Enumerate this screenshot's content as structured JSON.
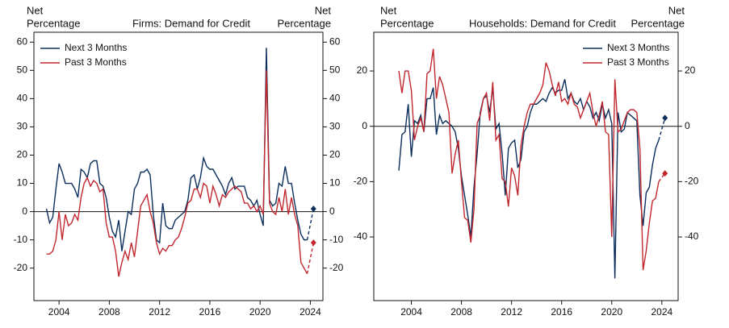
{
  "chart_data": [
    {
      "type": "line",
      "title": "Firms: Demand for Credit",
      "ylabel": [
        "Net",
        "Percentage"
      ],
      "y2label": [
        "Net",
        "Percentage"
      ],
      "legend": "upper left",
      "x": [
        2003,
        2003.25,
        2003.5,
        2003.75,
        2004,
        2004.25,
        2004.5,
        2004.75,
        2005,
        2005.25,
        2005.5,
        2005.75,
        2006,
        2006.25,
        2006.5,
        2006.75,
        2007,
        2007.25,
        2007.5,
        2007.75,
        2008,
        2008.25,
        2008.5,
        2008.75,
        2009,
        2009.25,
        2009.5,
        2009.75,
        2010,
        2010.25,
        2010.5,
        2010.75,
        2011,
        2011.25,
        2011.5,
        2011.75,
        2012,
        2012.25,
        2012.5,
        2012.75,
        2013,
        2013.25,
        2013.5,
        2013.75,
        2014,
        2014.25,
        2014.5,
        2014.75,
        2015,
        2015.25,
        2015.5,
        2015.75,
        2016,
        2016.25,
        2016.5,
        2016.75,
        2017,
        2017.25,
        2017.5,
        2017.75,
        2018,
        2018.25,
        2018.5,
        2018.75,
        2019,
        2019.25,
        2019.5,
        2019.75,
        2020,
        2020.25,
        2020.5,
        2020.75,
        2021,
        2021.25,
        2021.5,
        2021.75,
        2022,
        2022.25,
        2022.5,
        2022.75,
        2023,
        2023.25,
        2023.5,
        2023.75
      ],
      "series": [
        {
          "name": "Next 3 Months",
          "color": "#0b2e5c",
          "values": [
            1,
            -4,
            -2,
            8,
            17,
            14,
            10,
            10,
            10,
            8,
            5,
            15,
            14,
            12,
            17,
            18,
            18,
            10,
            9,
            5,
            -2,
            -7,
            -9,
            -3,
            -14,
            -7,
            0,
            -1,
            8,
            10,
            14,
            14,
            15,
            13,
            -1,
            -10,
            -11,
            3,
            -5,
            -6,
            -6,
            -3,
            -2,
            -1,
            0,
            4,
            12,
            13,
            8,
            12,
            19,
            16,
            15,
            15,
            13,
            11,
            9,
            6,
            10,
            12,
            8,
            9,
            9,
            9,
            5,
            4,
            2,
            4,
            -1,
            -5,
            58,
            4,
            2,
            3,
            10,
            9,
            16,
            10,
            10,
            3,
            -3,
            -8,
            -10,
            -10
          ],
          "expected": {
            "x": 2024.25,
            "value": 1
          }
        },
        {
          "name": "Past 3 Months",
          "color": "#c1272d",
          "values": [
            -15,
            -15,
            -14,
            -10,
            0,
            -10,
            -1,
            -5,
            -4,
            -1,
            -3,
            5,
            10,
            12,
            9,
            11,
            10,
            7,
            8,
            -4,
            -9,
            -9,
            -14,
            -23,
            -18,
            -14,
            -17,
            -11,
            -16,
            -7,
            2,
            4,
            6,
            0,
            -4,
            -11,
            -15,
            -13,
            -14,
            -12,
            -12,
            -10,
            -9,
            -6,
            -2,
            3,
            4,
            8,
            8,
            5,
            10,
            9,
            3,
            9,
            6,
            2,
            6,
            5,
            7,
            8,
            9,
            8,
            7,
            3,
            3,
            1,
            2,
            0,
            2,
            -1,
            50,
            3,
            0,
            -1,
            5,
            0,
            8,
            -1,
            5,
            -1,
            -5,
            -18,
            -20,
            -22
          ],
          "expected": {
            "x": 2024.25,
            "value": -11
          }
        }
      ],
      "xlim": [
        2002,
        2025
      ],
      "xticks": [
        2004,
        2008,
        2012,
        2016,
        2020,
        2024
      ],
      "ylim": [
        -31.5,
        63.5
      ],
      "yticks": [
        -20,
        -10,
        0,
        10,
        20,
        30,
        40,
        50,
        60
      ],
      "y2lim": [
        -31.5,
        63.5
      ],
      "y2ticks": [
        -20,
        -10,
        0,
        10,
        20,
        30,
        40,
        50,
        60
      ]
    },
    {
      "type": "line",
      "title": "Households: Demand for Credit",
      "ylabel": [
        "Net",
        "Percentage"
      ],
      "y2label": [
        "Net",
        "Percentage"
      ],
      "legend": "upper right",
      "x": [
        2003,
        2003.25,
        2003.5,
        2003.75,
        2004,
        2004.25,
        2004.5,
        2004.75,
        2005,
        2005.25,
        2005.5,
        2005.75,
        2006,
        2006.25,
        2006.5,
        2006.75,
        2007,
        2007.25,
        2007.5,
        2007.75,
        2008,
        2008.25,
        2008.5,
        2008.75,
        2009,
        2009.25,
        2009.5,
        2009.75,
        2010,
        2010.25,
        2010.5,
        2010.75,
        2011,
        2011.25,
        2011.5,
        2011.75,
        2012,
        2012.25,
        2012.5,
        2012.75,
        2013,
        2013.25,
        2013.5,
        2013.75,
        2014,
        2014.25,
        2014.5,
        2014.75,
        2015,
        2015.25,
        2015.5,
        2015.75,
        2016,
        2016.25,
        2016.5,
        2016.75,
        2017,
        2017.25,
        2017.5,
        2017.75,
        2018,
        2018.25,
        2018.5,
        2018.75,
        2019,
        2019.25,
        2019.5,
        2019.75,
        2020,
        2020.25,
        2020.5,
        2020.75,
        2021,
        2021.25,
        2021.5,
        2021.75,
        2022,
        2022.25,
        2022.5,
        2022.75,
        2023,
        2023.25,
        2023.5,
        2023.75
      ],
      "series": [
        {
          "name": "Next 3 Months",
          "color": "#0b2e5c",
          "values": [
            -16,
            -3,
            -2,
            8,
            -11,
            2,
            1,
            4,
            -2,
            10,
            10,
            14,
            -3,
            4,
            1,
            2,
            1,
            0,
            -2,
            -8,
            -18,
            -25,
            -32,
            -40,
            -22,
            -10,
            5,
            10,
            11,
            5,
            14,
            -1,
            1,
            -10,
            -25,
            -8,
            -6,
            -5,
            -15,
            -12,
            -2,
            0,
            5,
            8,
            8,
            9,
            10,
            9,
            12,
            14,
            12,
            13,
            13,
            17,
            10,
            12,
            9,
            8,
            10,
            6,
            9,
            7,
            3,
            5,
            2,
            8,
            3,
            6,
            1,
            -55,
            5,
            -2,
            -1,
            5,
            4,
            3,
            2,
            -25,
            -36,
            -24,
            -22,
            -14,
            -8,
            -5
          ],
          "expected": {
            "x": 2024.25,
            "value": 3
          }
        },
        {
          "name": "Past 3 Months",
          "color": "#c1272d",
          "values": [
            20,
            12,
            20,
            20,
            13,
            -5,
            0,
            3,
            -2,
            19,
            20,
            28,
            10,
            18,
            15,
            10,
            5,
            -17,
            -10,
            -5,
            -20,
            -33,
            -34,
            -42,
            -30,
            1,
            4,
            10,
            12,
            2,
            16,
            -5,
            -3,
            -19,
            -20,
            -29,
            -15,
            -18,
            -25,
            -7,
            0,
            5,
            8,
            8,
            10,
            12,
            15,
            23,
            20,
            15,
            11,
            16,
            9,
            10,
            8,
            12,
            8,
            7,
            3,
            6,
            9,
            12,
            5,
            0,
            4,
            9,
            -2,
            -3,
            -40,
            17,
            -2,
            -1,
            2,
            5,
            6,
            6,
            5,
            -8,
            -52,
            -45,
            -35,
            -27,
            -26,
            -20
          ],
          "expected": {
            "x": 2024.25,
            "value": -17
          }
        }
      ],
      "xlim": [
        2001,
        2025.3
      ],
      "xticks": [
        2004,
        2008,
        2012,
        2016,
        2020,
        2024
      ],
      "ylim": [
        -63,
        34
      ],
      "yticks": [
        -40,
        -20,
        0,
        20
      ],
      "y2lim": [
        -63,
        34
      ],
      "y2ticks": [
        -40,
        -20,
        0,
        20
      ]
    }
  ]
}
